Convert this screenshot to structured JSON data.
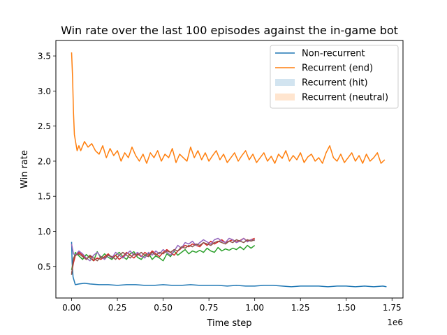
{
  "chart_data": {
    "type": "line",
    "title": "Win rate over the last 100 episodes against the in-game bot",
    "xlabel": "Time step",
    "ylabel": "Win rate",
    "x_offset_label": "1e6",
    "xlim": [
      -0.086,
      1.81
    ],
    "ylim": [
      0.05,
      3.72
    ],
    "x_ticks": [
      0.0,
      0.25,
      0.5,
      0.75,
      1.0,
      1.25,
      1.5,
      1.75
    ],
    "x_tick_labels": [
      "0.00",
      "0.25",
      "0.50",
      "0.75",
      "1.00",
      "1.25",
      "1.50",
      "1.75"
    ],
    "y_ticks": [
      0.5,
      1.0,
      1.5,
      2.0,
      2.5,
      3.0,
      3.5
    ],
    "y_tick_labels": [
      "0.5",
      "1.0",
      "1.5",
      "2.0",
      "2.5",
      "3.0",
      "3.5"
    ],
    "grid": false,
    "legend_position": "top-right",
    "legend": [
      {
        "label": "Non-recurrent",
        "kind": "line",
        "color": "#1f77b4"
      },
      {
        "label": "Recurrent (end)",
        "kind": "line",
        "color": "#ff7f0e"
      },
      {
        "label": "Recurrent (hit)",
        "kind": "patch",
        "color": "#1f77b4"
      },
      {
        "label": "Recurrent (neutral)",
        "kind": "patch",
        "color": "#ff7f0e"
      }
    ],
    "series": [
      {
        "name": "Non-recurrent",
        "color": "#1f77b4",
        "x": [
          0.0,
          0.003,
          0.008,
          0.02,
          0.04,
          0.07,
          0.1,
          0.15,
          0.2,
          0.25,
          0.3,
          0.35,
          0.4,
          0.45,
          0.5,
          0.55,
          0.6,
          0.65,
          0.7,
          0.75,
          0.8,
          0.85,
          0.9,
          0.95,
          1.0,
          1.05,
          1.1,
          1.15,
          1.2,
          1.25,
          1.3,
          1.35,
          1.4,
          1.45,
          1.5,
          1.55,
          1.6,
          1.65,
          1.7,
          1.72
        ],
        "y": [
          0.85,
          0.55,
          0.35,
          0.24,
          0.25,
          0.26,
          0.25,
          0.24,
          0.24,
          0.23,
          0.24,
          0.24,
          0.23,
          0.23,
          0.24,
          0.23,
          0.23,
          0.24,
          0.23,
          0.23,
          0.23,
          0.22,
          0.23,
          0.22,
          0.22,
          0.23,
          0.23,
          0.22,
          0.21,
          0.22,
          0.22,
          0.22,
          0.21,
          0.22,
          0.22,
          0.21,
          0.22,
          0.21,
          0.22,
          0.21
        ]
      },
      {
        "name": "Recurrent (end)",
        "color": "#ff7f0e",
        "x": [
          0.0,
          0.005,
          0.01,
          0.015,
          0.02,
          0.03,
          0.04,
          0.05,
          0.07,
          0.09,
          0.11,
          0.13,
          0.15,
          0.17,
          0.19,
          0.21,
          0.23,
          0.25,
          0.27,
          0.29,
          0.31,
          0.33,
          0.35,
          0.37,
          0.39,
          0.41,
          0.43,
          0.45,
          0.47,
          0.49,
          0.51,
          0.53,
          0.55,
          0.57,
          0.59,
          0.61,
          0.63,
          0.65,
          0.67,
          0.69,
          0.71,
          0.73,
          0.75,
          0.77,
          0.79,
          0.81,
          0.83,
          0.85,
          0.87,
          0.89,
          0.91,
          0.93,
          0.95,
          0.97,
          0.99,
          1.01,
          1.03,
          1.05,
          1.07,
          1.09,
          1.11,
          1.13,
          1.15,
          1.17,
          1.19,
          1.21,
          1.23,
          1.25,
          1.27,
          1.29,
          1.31,
          1.33,
          1.35,
          1.37,
          1.39,
          1.41,
          1.43,
          1.45,
          1.47,
          1.49,
          1.51,
          1.53,
          1.55,
          1.57,
          1.59,
          1.61,
          1.63,
          1.65,
          1.67,
          1.69,
          1.71
        ],
        "y": [
          3.55,
          3.2,
          2.7,
          2.38,
          2.3,
          2.15,
          2.22,
          2.15,
          2.28,
          2.2,
          2.25,
          2.15,
          2.1,
          2.22,
          2.05,
          2.18,
          2.08,
          2.15,
          2.0,
          2.12,
          2.05,
          2.2,
          2.08,
          2.0,
          2.1,
          1.97,
          2.12,
          2.05,
          2.15,
          2.0,
          2.1,
          2.05,
          2.18,
          1.98,
          2.1,
          2.05,
          2.0,
          2.2,
          2.05,
          2.15,
          2.02,
          2.12,
          2.0,
          2.08,
          2.15,
          2.02,
          2.1,
          1.98,
          2.05,
          2.12,
          2.0,
          2.08,
          2.15,
          2.02,
          2.1,
          1.98,
          2.05,
          2.12,
          2.0,
          2.07,
          1.97,
          2.1,
          2.04,
          2.15,
          2.0,
          2.08,
          2.02,
          2.12,
          1.98,
          2.06,
          2.1,
          2.0,
          2.05,
          1.97,
          2.12,
          2.22,
          2.05,
          2.0,
          2.1,
          1.98,
          2.05,
          2.12,
          2.0,
          2.08,
          1.97,
          2.1,
          2.0,
          2.05,
          2.12,
          1.97,
          2.02
        ]
      },
      {
        "name": "",
        "color": "#2ca02c",
        "x": [
          0.0,
          0.01,
          0.02,
          0.04,
          0.06,
          0.08,
          0.1,
          0.12,
          0.14,
          0.16,
          0.18,
          0.2,
          0.22,
          0.24,
          0.26,
          0.28,
          0.3,
          0.32,
          0.34,
          0.36,
          0.38,
          0.4,
          0.42,
          0.44,
          0.46,
          0.48,
          0.5,
          0.52,
          0.54,
          0.56,
          0.58,
          0.6,
          0.62,
          0.64,
          0.66,
          0.68,
          0.7,
          0.72,
          0.74,
          0.76,
          0.78,
          0.8,
          0.82,
          0.84,
          0.86,
          0.88,
          0.9,
          0.92,
          0.94,
          0.96,
          0.98,
          1.0
        ],
        "y": [
          0.45,
          0.58,
          0.7,
          0.65,
          0.6,
          0.67,
          0.62,
          0.58,
          0.71,
          0.62,
          0.68,
          0.63,
          0.6,
          0.66,
          0.7,
          0.64,
          0.6,
          0.68,
          0.71,
          0.63,
          0.6,
          0.66,
          0.69,
          0.6,
          0.65,
          0.62,
          0.58,
          0.68,
          0.64,
          0.72,
          0.66,
          0.7,
          0.74,
          0.68,
          0.72,
          0.7,
          0.73,
          0.7,
          0.76,
          0.72,
          0.7,
          0.77,
          0.72,
          0.75,
          0.73,
          0.76,
          0.74,
          0.78,
          0.74,
          0.8,
          0.76,
          0.8
        ]
      },
      {
        "name": "",
        "color": "#d62728",
        "x": [
          0.0,
          0.01,
          0.02,
          0.04,
          0.06,
          0.08,
          0.1,
          0.12,
          0.14,
          0.16,
          0.18,
          0.2,
          0.22,
          0.24,
          0.26,
          0.28,
          0.3,
          0.32,
          0.34,
          0.36,
          0.38,
          0.4,
          0.42,
          0.44,
          0.46,
          0.48,
          0.5,
          0.52,
          0.54,
          0.56,
          0.58,
          0.6,
          0.62,
          0.64,
          0.66,
          0.68,
          0.7,
          0.72,
          0.74,
          0.76,
          0.78,
          0.8,
          0.82,
          0.84,
          0.86,
          0.88,
          0.9,
          0.92,
          0.94,
          0.96,
          0.98,
          1.0
        ],
        "y": [
          0.4,
          0.55,
          0.65,
          0.7,
          0.66,
          0.6,
          0.65,
          0.58,
          0.62,
          0.6,
          0.64,
          0.68,
          0.62,
          0.66,
          0.6,
          0.64,
          0.7,
          0.66,
          0.62,
          0.68,
          0.64,
          0.7,
          0.66,
          0.72,
          0.68,
          0.64,
          0.7,
          0.74,
          0.7,
          0.66,
          0.72,
          0.76,
          0.8,
          0.78,
          0.82,
          0.8,
          0.78,
          0.84,
          0.8,
          0.86,
          0.82,
          0.85,
          0.88,
          0.84,
          0.86,
          0.88,
          0.85,
          0.87,
          0.9,
          0.86,
          0.88,
          0.9
        ]
      },
      {
        "name": "",
        "color": "#9467bd",
        "x": [
          0.0,
          0.01,
          0.02,
          0.04,
          0.06,
          0.08,
          0.1,
          0.12,
          0.14,
          0.16,
          0.18,
          0.2,
          0.22,
          0.24,
          0.26,
          0.28,
          0.3,
          0.32,
          0.34,
          0.36,
          0.38,
          0.4,
          0.42,
          0.44,
          0.46,
          0.48,
          0.5,
          0.52,
          0.54,
          0.56,
          0.58,
          0.6,
          0.62,
          0.64,
          0.66,
          0.68,
          0.7,
          0.72,
          0.74,
          0.76,
          0.78,
          0.8,
          0.82,
          0.84,
          0.86,
          0.88,
          0.9,
          0.92,
          0.94,
          0.96,
          0.98,
          1.0
        ],
        "y": [
          0.82,
          0.68,
          0.66,
          0.72,
          0.68,
          0.62,
          0.58,
          0.66,
          0.7,
          0.64,
          0.6,
          0.66,
          0.62,
          0.7,
          0.66,
          0.62,
          0.68,
          0.72,
          0.66,
          0.7,
          0.65,
          0.62,
          0.7,
          0.66,
          0.72,
          0.68,
          0.74,
          0.7,
          0.66,
          0.72,
          0.8,
          0.76,
          0.84,
          0.82,
          0.86,
          0.8,
          0.84,
          0.88,
          0.85,
          0.82,
          0.88,
          0.9,
          0.86,
          0.84,
          0.9,
          0.88,
          0.84,
          0.86,
          0.9,
          0.85,
          0.88,
          0.87
        ]
      },
      {
        "name": "",
        "color": "#8c564b",
        "x": [
          0.0,
          0.01,
          0.02,
          0.04,
          0.06,
          0.08,
          0.1,
          0.12,
          0.14,
          0.16,
          0.18,
          0.2,
          0.22,
          0.24,
          0.26,
          0.28,
          0.3,
          0.32,
          0.34,
          0.36,
          0.38,
          0.4,
          0.42,
          0.44,
          0.46,
          0.48,
          0.5,
          0.52,
          0.54,
          0.56,
          0.58,
          0.6,
          0.62,
          0.64,
          0.66,
          0.68,
          0.7,
          0.72,
          0.74,
          0.76,
          0.78,
          0.8,
          0.82,
          0.84,
          0.86,
          0.88,
          0.9,
          0.92,
          0.94,
          0.96,
          0.98,
          1.0
        ],
        "y": [
          0.38,
          0.62,
          0.66,
          0.68,
          0.64,
          0.6,
          0.66,
          0.62,
          0.58,
          0.64,
          0.62,
          0.66,
          0.64,
          0.6,
          0.66,
          0.7,
          0.66,
          0.62,
          0.68,
          0.66,
          0.7,
          0.66,
          0.64,
          0.7,
          0.66,
          0.7,
          0.68,
          0.72,
          0.7,
          0.74,
          0.72,
          0.78,
          0.76,
          0.8,
          0.78,
          0.82,
          0.8,
          0.84,
          0.82,
          0.8,
          0.84,
          0.86,
          0.84,
          0.82,
          0.86,
          0.84,
          0.88,
          0.86,
          0.84,
          0.88,
          0.86,
          0.88
        ]
      }
    ]
  }
}
